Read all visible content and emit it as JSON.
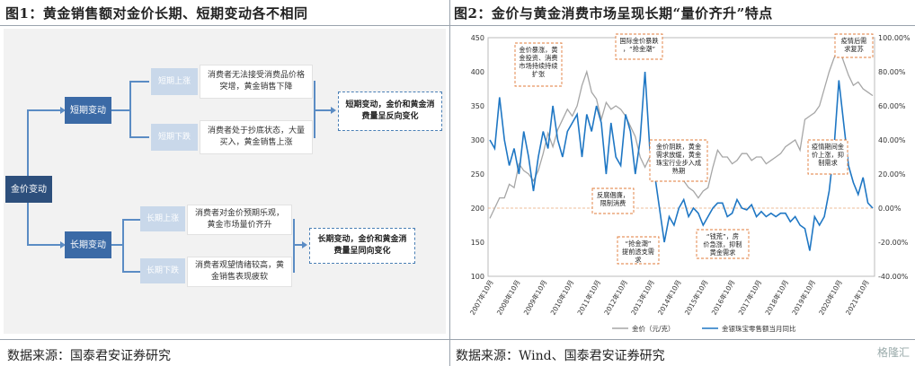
{
  "left": {
    "title": "图1：黄金销售额对金价长期、短期变动各不相同",
    "source": "数据来源：国泰君安证券研究",
    "nodes": {
      "root": "金价变动",
      "short": "短期变动",
      "long": "长期变动",
      "short_up": "短期上涨",
      "short_down": "短期下跌",
      "long_up": "长期上涨",
      "long_down": "长期下跌",
      "short_up_desc": "消费者无法接受消费品价格突增，黄金销售下降",
      "short_down_desc": "消费者处于抄底状态，大量买入，黄金销售上涨",
      "long_up_desc": "消费者对金价预期乐观，黄金市场量价齐升",
      "long_down_desc": "消费者观望情绪较高，黄金销售表现疲软",
      "short_result": "短期变动，金价和黄金消费量呈反向变化",
      "long_result": "长期变动，金价和黄金消费量呈同向变化"
    }
  },
  "right": {
    "title": "图2：金价与黄金消费市场呈现长期“量价齐升”特点",
    "source": "数据来源：Wind、国泰君安证券研究",
    "watermark": "格隆汇"
  },
  "chart_data": {
    "type": "line",
    "x_labels": [
      "2007年10月",
      "2008年10月",
      "2009年10月",
      "2010年10月",
      "2011年10月",
      "2012年10月",
      "2013年10月",
      "2014年10月",
      "2015年10月",
      "2016年10月",
      "2017年10月",
      "2018年10月",
      "2019年10月",
      "2020年10月",
      "2021年10月"
    ],
    "y_left": {
      "min": 100,
      "max": 450,
      "ticks": [
        100,
        150,
        200,
        250,
        300,
        350,
        400,
        450
      ]
    },
    "y_right": {
      "min": -40,
      "max": 100,
      "ticks": [
        "-40.00%",
        "-20.00%",
        "0.00%",
        "20.00%",
        "40.00%",
        "60.00%",
        "80.00%",
        "100.00%"
      ]
    },
    "series": [
      {
        "name": "金价（元/克）",
        "color": "#a6a6a6",
        "axis": "left",
        "values": [
          185,
          200,
          215,
          215,
          235,
          230,
          265,
          255,
          250,
          240,
          255,
          280,
          310,
          290,
          315,
          330,
          345,
          335,
          350,
          380,
          400,
          370,
          360,
          330,
          355,
          345,
          350,
          345,
          335,
          320,
          305,
          275,
          260,
          275,
          255,
          265,
          250,
          245,
          240,
          255,
          240,
          230,
          225,
          215,
          225,
          230,
          260,
          285,
          275,
          275,
          265,
          270,
          280,
          280,
          270,
          275,
          275,
          265,
          270,
          275,
          280,
          290,
          295,
          300,
          285,
          330,
          335,
          340,
          350,
          375,
          400,
          420,
          435,
          415,
          395,
          380,
          385,
          375,
          370,
          365
        ]
      },
      {
        "name": "金银珠宝零售额当月同比",
        "color": "#1f77c4",
        "axis": "right",
        "values": [
          40,
          35,
          65,
          40,
          25,
          35,
          20,
          45,
          30,
          10,
          30,
          45,
          35,
          60,
          40,
          30,
          45,
          50,
          55,
          30,
          55,
          45,
          60,
          50,
          20,
          50,
          30,
          25,
          55,
          45,
          20,
          40,
          80,
          35,
          20,
          0,
          -20,
          -5,
          -10,
          0,
          5,
          -5,
          0,
          -3,
          -10,
          -5,
          0,
          3,
          3,
          -5,
          -3,
          5,
          0,
          -1,
          2,
          -5,
          -2,
          -5,
          -3,
          -5,
          -3,
          -3,
          -8,
          -5,
          -10,
          -12,
          -25,
          -5,
          -10,
          -5,
          10,
          35,
          75,
          50,
          25,
          15,
          8,
          18,
          3,
          0
        ]
      }
    ],
    "annotations": [
      "金价暴涨，黄金投资、消费市场持续持续扩张",
      "国际金价暴跌，“抢金潮”",
      "金价阴跌，黄金需求放缓，黄金珠宝行业步入成熟期",
      "反腐倡廉，限制消费",
      "“抢金潮”提前透支需求",
      "“钱荒”，房价急涨，抑制黄金需求",
      "疫情期间金价上涨，抑制需求",
      "疫情后需求复苏"
    ]
  }
}
